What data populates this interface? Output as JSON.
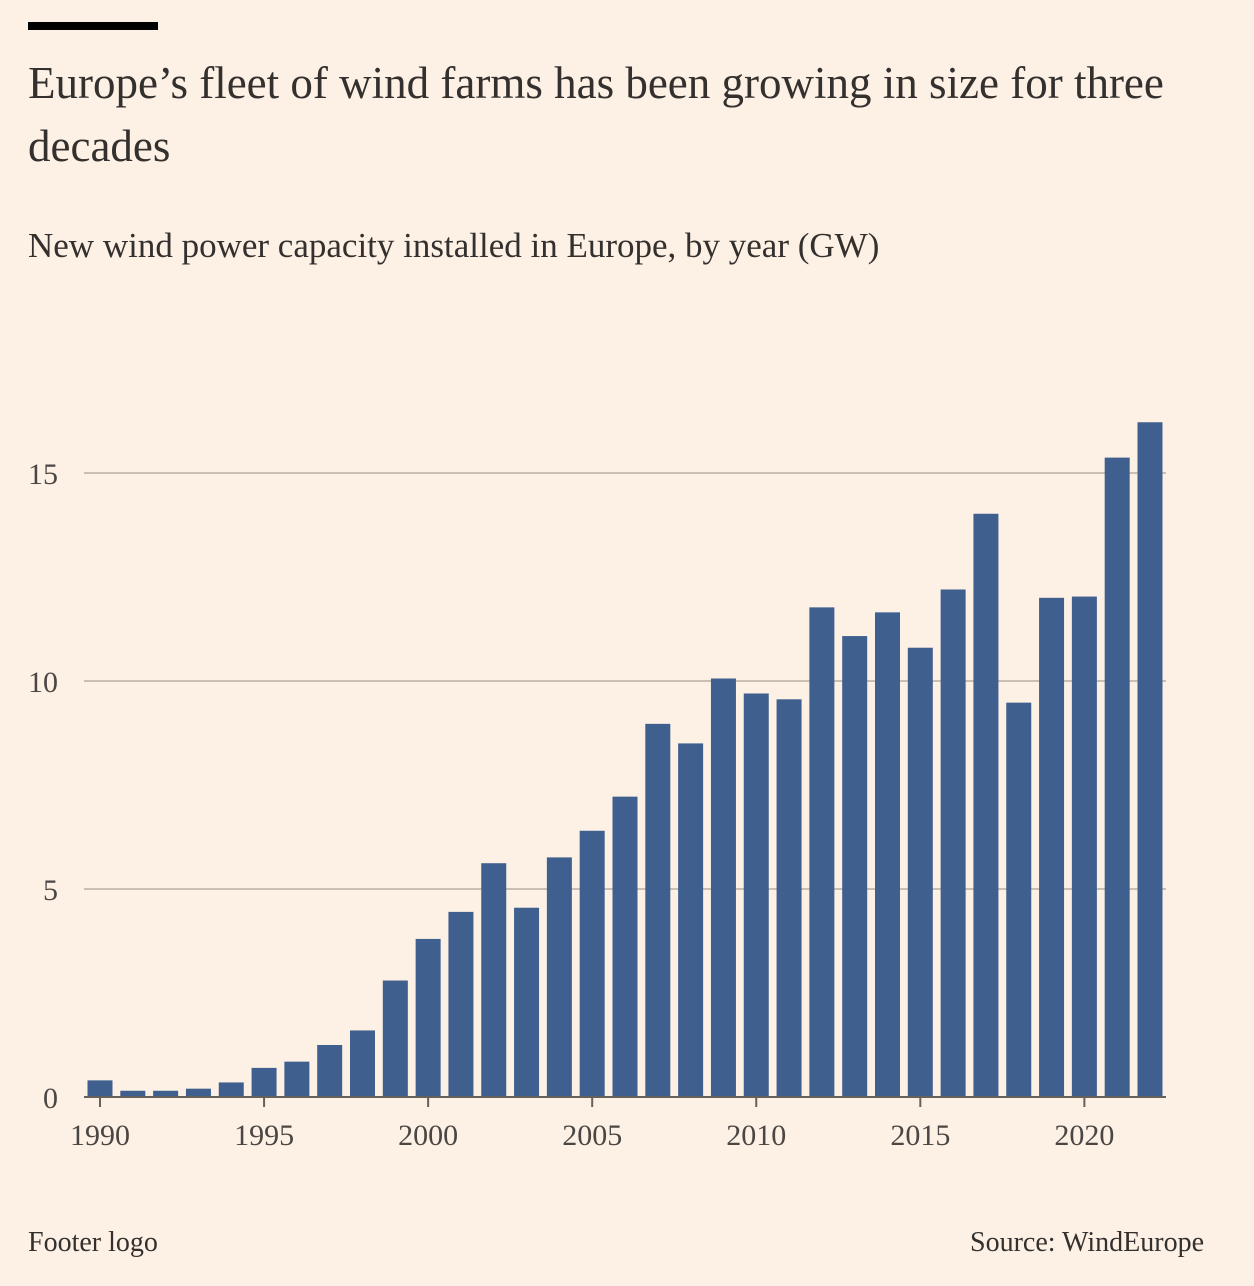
{
  "header": {
    "title": "Europe’s fleet of wind farms has been growing in size for three decades",
    "subtitle": "New wind power capacity installed in Europe, by year (GW)"
  },
  "footer": {
    "logo_text": "Footer logo",
    "source": "Source: WindEurope"
  },
  "colors": {
    "bar": "#3f5f8f",
    "grid": "#c9bfb5",
    "axis": "#66605c",
    "background": "#fdf1e5"
  },
  "chart_data": {
    "type": "bar",
    "title": "Europe’s fleet of wind farms has been growing in size for three decades",
    "subtitle": "New wind power capacity installed in Europe, by year (GW)",
    "xlabel": "",
    "ylabel": "",
    "ylim": [
      0,
      17
    ],
    "xlim": [
      1990,
      2022
    ],
    "yticks": [
      0,
      5,
      10,
      15
    ],
    "xticks": [
      1990,
      1995,
      2000,
      2005,
      2010,
      2015,
      2020
    ],
    "grid": true,
    "legend": "none",
    "categories": [
      1990,
      1991,
      1992,
      1993,
      1994,
      1995,
      1996,
      1997,
      1998,
      1999,
      2000,
      2001,
      2002,
      2003,
      2004,
      2005,
      2006,
      2007,
      2008,
      2009,
      2010,
      2011,
      2012,
      2013,
      2014,
      2015,
      2016,
      2017,
      2018,
      2019,
      2020,
      2021,
      2022
    ],
    "values": [
      0.4,
      0.15,
      0.15,
      0.2,
      0.35,
      0.7,
      0.85,
      1.25,
      1.6,
      2.8,
      3.8,
      4.45,
      5.62,
      4.55,
      5.76,
      6.4,
      7.22,
      8.97,
      8.5,
      10.06,
      9.7,
      9.56,
      11.77,
      11.08,
      11.65,
      10.8,
      12.2,
      14.02,
      9.48,
      12.0,
      12.03,
      15.37,
      16.22
    ]
  }
}
